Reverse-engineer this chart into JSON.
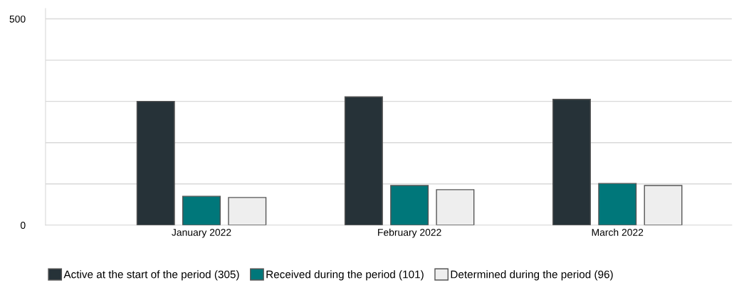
{
  "chart_data": {
    "type": "bar",
    "categories": [
      "January 2022",
      "February 2022",
      "March 2022"
    ],
    "series": [
      {
        "name": "Active at the start of the period (305)",
        "color": "#263238",
        "values": [
          300,
          311,
          305
        ]
      },
      {
        "name": "Received during the period (101)",
        "color": "#00777a",
        "values": [
          70,
          96,
          101
        ]
      },
      {
        "name": "Determined during the period (96)",
        "color": "#eeeeee",
        "values": [
          67,
          86,
          96
        ]
      }
    ],
    "ylim": [
      0,
      525
    ],
    "yticks": [
      0,
      {
        "value": 100,
        "label": null
      },
      {
        "value": 200,
        "label": null
      },
      {
        "value": 300,
        "label": null
      },
      {
        "value": 400,
        "label": null
      },
      500
    ],
    "grid": "y",
    "legend": "bottom"
  }
}
